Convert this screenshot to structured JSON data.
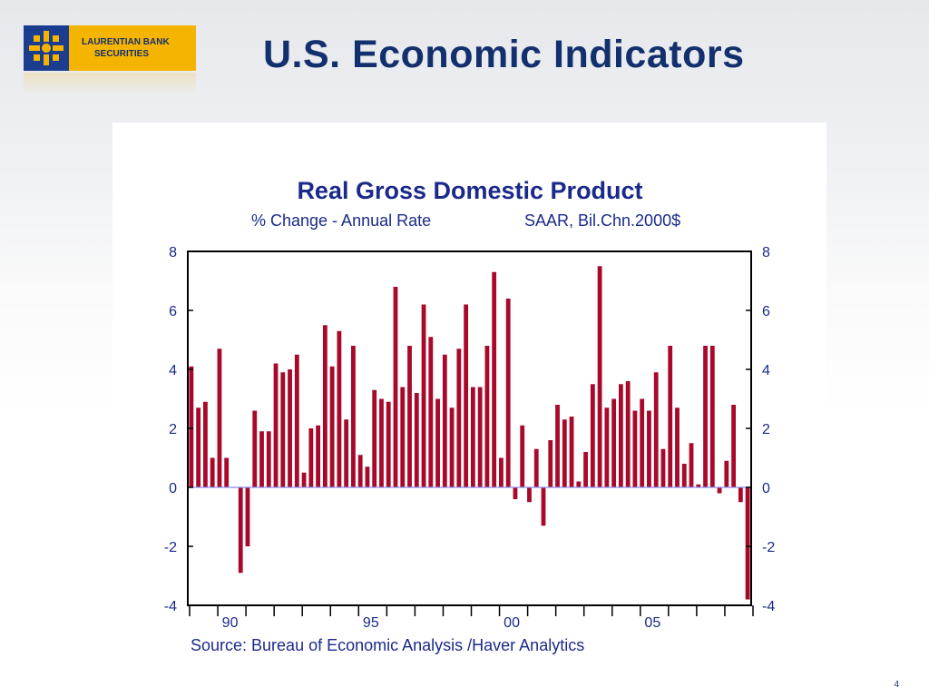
{
  "header": {
    "logo_line1": "LAURENTIAN BANK",
    "logo_line2": "SECURITIES",
    "title": "U.S. Economic Indicators"
  },
  "footer": {
    "page_number": "4"
  },
  "colors": {
    "bar": "#a8092b",
    "text": "#1b2a8a",
    "title": "#13306e",
    "zero_line": "#8c8ff0"
  },
  "chart_data": {
    "type": "bar",
    "title": "Real Gross Domestic Product",
    "subtitle_left": "% Change - Annual Rate",
    "subtitle_right": "SAAR, Bil.Chn.2000$",
    "source": "Source:  Bureau of Economic Analysis /Haver Analytics",
    "ylim": [
      -4,
      8
    ],
    "yticks": [
      "8",
      "6",
      "4",
      "2",
      "0",
      "-2",
      "-4"
    ],
    "x_start": "1989Q1",
    "frequency": "quarterly",
    "xtick_labels": [
      {
        "label": "90",
        "index": 6
      },
      {
        "label": "95",
        "index": 26
      },
      {
        "label": "00",
        "index": 46
      },
      {
        "label": "05",
        "index": 66
      }
    ],
    "grid": false,
    "values": [
      4.1,
      2.7,
      2.9,
      1.0,
      4.7,
      1.0,
      0.0,
      -2.9,
      -2.0,
      2.6,
      1.9,
      1.9,
      4.2,
      3.9,
      4.0,
      4.5,
      0.5,
      2.0,
      2.1,
      5.5,
      4.1,
      5.3,
      2.3,
      4.8,
      1.1,
      0.7,
      3.3,
      3.0,
      2.9,
      6.8,
      3.4,
      4.8,
      3.2,
      6.2,
      5.1,
      3.0,
      4.5,
      2.7,
      4.7,
      6.2,
      3.4,
      3.4,
      4.8,
      7.3,
      1.0,
      6.4,
      -0.4,
      2.1,
      -0.5,
      1.3,
      -1.3,
      1.6,
      2.8,
      2.3,
      2.4,
      0.2,
      1.2,
      3.5,
      7.5,
      2.7,
      3.0,
      3.5,
      3.6,
      2.6,
      3.0,
      2.6,
      3.9,
      1.3,
      4.8,
      2.7,
      0.8,
      1.5,
      0.1,
      4.8,
      4.8,
      -0.2,
      0.9,
      2.8,
      -0.5,
      -3.8
    ]
  }
}
